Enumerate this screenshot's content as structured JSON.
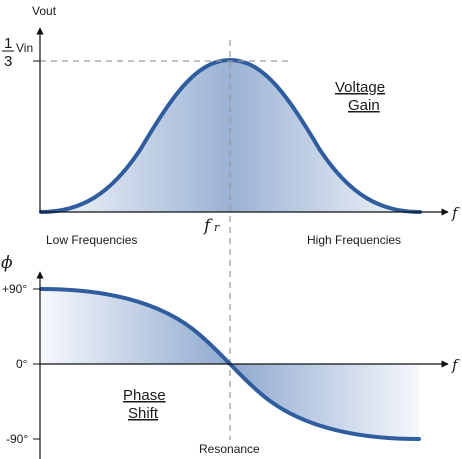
{
  "labels": {
    "vout": "Vout",
    "fraction_num": "1",
    "fraction_den": "3",
    "vin": "Vin",
    "voltage_gain_line1": "Voltage",
    "voltage_gain_line2": "Gain",
    "fr_main": "f",
    "fr_sub": "r",
    "freq_axis_top": "f",
    "freq_axis_bottom": "f",
    "low_freq": "Low Frequencies",
    "high_freq": "High Frequencies",
    "phi": "ϕ",
    "plus90": "+90°",
    "zero": "0°",
    "minus90": "-90°",
    "phase_shift_line1": "Phase",
    "phase_shift_line2": "Shift",
    "resonance": "Resonance"
  },
  "colors": {
    "curve": "#2f5d9e",
    "fill_dark": "#8fa9cf",
    "fill_light": "#f3f6fb",
    "axis": "#111111",
    "guide": "#9a9a9a"
  }
}
